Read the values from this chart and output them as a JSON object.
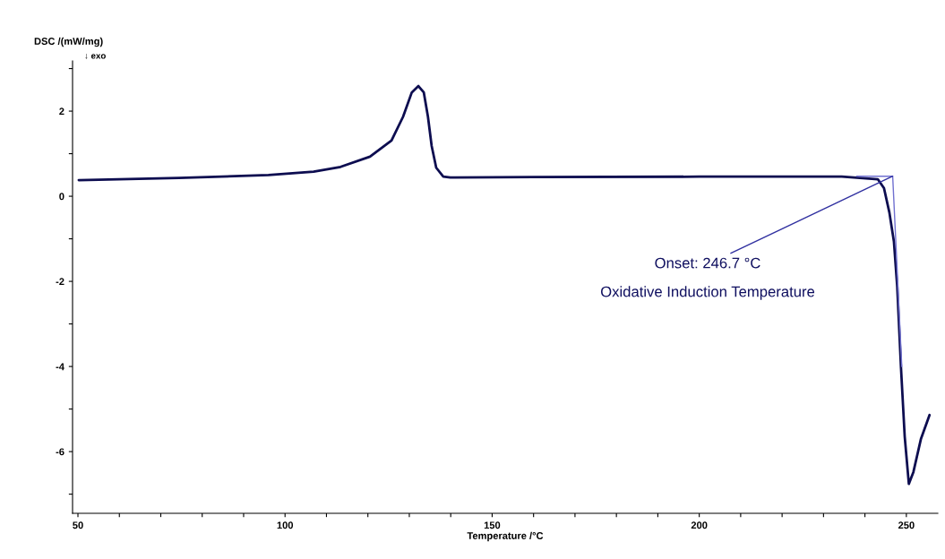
{
  "chart_data": {
    "type": "line",
    "xlabel": "Temperature /°C",
    "ylabel": "DSC /(mW/mg)",
    "annotations": [
      "↓ exo",
      {
        "text": "Onset: 246.7 °C",
        "x": 246.7,
        "y": 0.47
      },
      "Oxidative Induction Temperature"
    ],
    "series": [
      {
        "color": "#0d0d50",
        "x": [
          50.2,
          74.4,
          96.0,
          106.9,
          113.4,
          120.5,
          125.7,
          128.5,
          130.6,
          132.2,
          133.5,
          134.5,
          135.4,
          136.5,
          138.2,
          139.9,
          160,
          200,
          234.4,
          243.1,
          244.6,
          245.9,
          247.0,
          247.8,
          248.7,
          249.6,
          250.6,
          251.7,
          253.5,
          255.6
        ],
        "values": [
          0.38,
          0.43,
          0.5,
          0.58,
          0.69,
          0.93,
          1.31,
          1.87,
          2.44,
          2.59,
          2.44,
          1.87,
          1.18,
          0.67,
          0.46,
          0.44,
          0.45,
          0.46,
          0.46,
          0.4,
          0.19,
          -0.38,
          -1.07,
          -2.13,
          -4.02,
          -5.64,
          -6.76,
          -6.48,
          -5.71,
          -5.14
        ]
      },
      {
        "color": "#7070d0",
        "x": [
          238,
          246.7,
          248.9
        ],
        "values": [
          0.47,
          0.47,
          -4.0
        ]
      }
    ],
    "xlim": [
      48.7,
      257.6
    ],
    "ylim": [
      -7.45,
      3.18
    ],
    "xticks": [
      50,
      {
        "value": 60,
        "label": null
      },
      {
        "value": 70,
        "label": null
      },
      {
        "value": 80,
        "label": null
      },
      {
        "value": 90,
        "label": null
      },
      100,
      {
        "value": 110,
        "label": null
      },
      {
        "value": 120,
        "label": null
      },
      {
        "value": 130,
        "label": null
      },
      {
        "value": 140,
        "label": null
      },
      150,
      {
        "value": 160,
        "label": null
      },
      {
        "value": 170,
        "label": null
      },
      {
        "value": 180,
        "label": null
      },
      {
        "value": 190,
        "label": null
      },
      200,
      {
        "value": 210,
        "label": null
      },
      {
        "value": 220,
        "label": null
      },
      {
        "value": 230,
        "label": null
      },
      {
        "value": 240,
        "label": null
      },
      250
    ],
    "yticks": [
      {
        "value": -7,
        "label": null
      },
      -6,
      {
        "value": -5,
        "label": null
      },
      -4,
      {
        "value": -3,
        "label": null
      },
      -2,
      {
        "value": -1,
        "label": null
      },
      0,
      {
        "value": 1,
        "label": null
      },
      2,
      {
        "value": 3,
        "label": null
      }
    ],
    "grid": false,
    "legend": false
  }
}
